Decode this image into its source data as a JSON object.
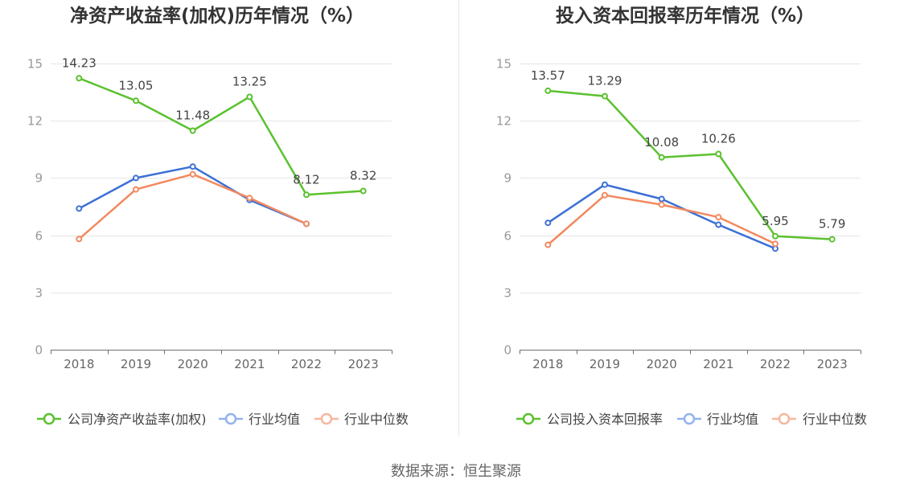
{
  "source": "数据来源：恒生聚源",
  "chart_data": [
    {
      "type": "line",
      "title": "净资产收益率(加权)历年情况（%）",
      "categories": [
        "2018",
        "2019",
        "2020",
        "2021",
        "2022",
        "2023"
      ],
      "ylim": [
        0,
        15
      ],
      "yticks": [
        0,
        3,
        6,
        9,
        12,
        15
      ],
      "grid": true,
      "legend_position": "bottom",
      "series": [
        {
          "name": "公司净资产收益率(加权)",
          "color": "#5bc12f",
          "legend_color": "#5bc12f",
          "data_labels": true,
          "values": [
            14.23,
            13.05,
            11.48,
            13.25,
            8.12,
            8.32
          ]
        },
        {
          "name": "行业均值",
          "color": "#3c70d6",
          "legend_color": "#93b2ee",
          "data_labels": false,
          "values": [
            7.4,
            9.0,
            9.6,
            7.85,
            6.6,
            null
          ]
        },
        {
          "name": "行业中位数",
          "color": "#f2895e",
          "legend_color": "#f6b79e",
          "data_labels": false,
          "values": [
            5.8,
            8.4,
            9.2,
            7.95,
            6.6,
            null
          ]
        }
      ]
    },
    {
      "type": "line",
      "title": "投入资本回报率历年情况（%）",
      "categories": [
        "2018",
        "2019",
        "2020",
        "2021",
        "2022",
        "2023"
      ],
      "ylim": [
        0,
        15
      ],
      "yticks": [
        0,
        3,
        6,
        9,
        12,
        15
      ],
      "grid": true,
      "legend_position": "bottom",
      "series": [
        {
          "name": "公司投入资本回报率",
          "color": "#5bc12f",
          "legend_color": "#5bc12f",
          "data_labels": true,
          "values": [
            13.57,
            13.29,
            10.08,
            10.26,
            5.95,
            5.79
          ]
        },
        {
          "name": "行业均值",
          "color": "#3c70d6",
          "legend_color": "#93b2ee",
          "data_labels": false,
          "values": [
            6.65,
            8.65,
            7.9,
            6.55,
            5.3,
            null
          ]
        },
        {
          "name": "行业中位数",
          "color": "#f2895e",
          "legend_color": "#f6b79e",
          "data_labels": false,
          "values": [
            5.5,
            8.1,
            7.6,
            6.95,
            5.55,
            null
          ]
        }
      ]
    }
  ]
}
